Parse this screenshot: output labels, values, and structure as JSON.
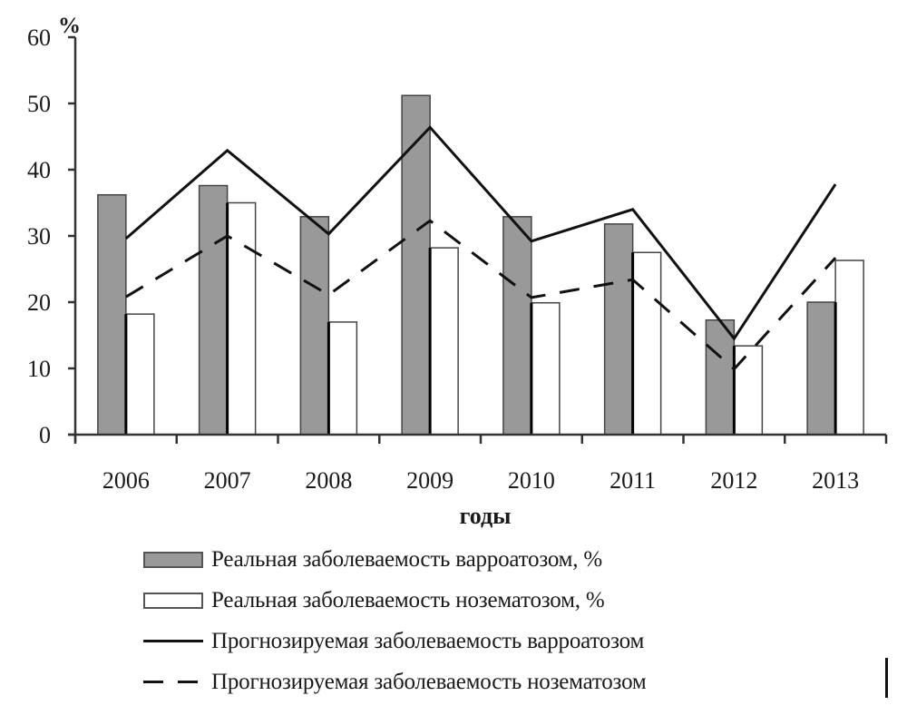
{
  "chart_data": {
    "type": "bar",
    "title": "",
    "xlabel": "годы",
    "ylabel": "%",
    "ylim": [
      0,
      60
    ],
    "yticks": [
      0,
      10,
      20,
      30,
      40,
      50,
      60
    ],
    "grid": false,
    "legend_position": "bottom",
    "categories": [
      "2006",
      "2007",
      "2008",
      "2009",
      "2010",
      "2011",
      "2012",
      "2013"
    ],
    "series": [
      {
        "name": "Реальная заболеваемость варроатозом, %",
        "kind": "bar",
        "color": "#999999",
        "values": [
          36.2,
          37.6,
          32.9,
          51.2,
          32.9,
          31.8,
          17.3,
          20.0
        ]
      },
      {
        "name": "Реальная заболеваемость нозематозом, %",
        "kind": "bar",
        "color": "#ffffff",
        "values": [
          18.2,
          35.0,
          17.0,
          28.2,
          19.9,
          27.5,
          13.4,
          26.3
        ]
      },
      {
        "name": "Прогнозируемая заболеваемость варроатозом",
        "kind": "line",
        "style": "solid",
        "color": "#111111",
        "values": [
          29.6,
          42.9,
          30.3,
          46.4,
          29.2,
          34.0,
          14.5,
          37.8
        ]
      },
      {
        "name": "Прогнозируемая заболеваемость нозематозом",
        "kind": "line",
        "style": "dashed",
        "color": "#111111",
        "values": [
          20.8,
          30.0,
          21.1,
          32.3,
          20.7,
          23.4,
          9.9,
          26.7
        ]
      }
    ]
  },
  "axis": {
    "y_unit": "%",
    "x_title": "годы"
  },
  "legend": {
    "items": [
      {
        "label": "Реальная заболеваемость варроатозом, %",
        "swatch": "gray"
      },
      {
        "label": "Реальная заболеваемость нозематозом, %",
        "swatch": "white"
      },
      {
        "label": "Прогнозируемая заболеваемость варроатозом",
        "swatch": "line"
      },
      {
        "label": "Прогнозируемая заболеваемость нозематозом",
        "swatch": "dash"
      }
    ]
  }
}
